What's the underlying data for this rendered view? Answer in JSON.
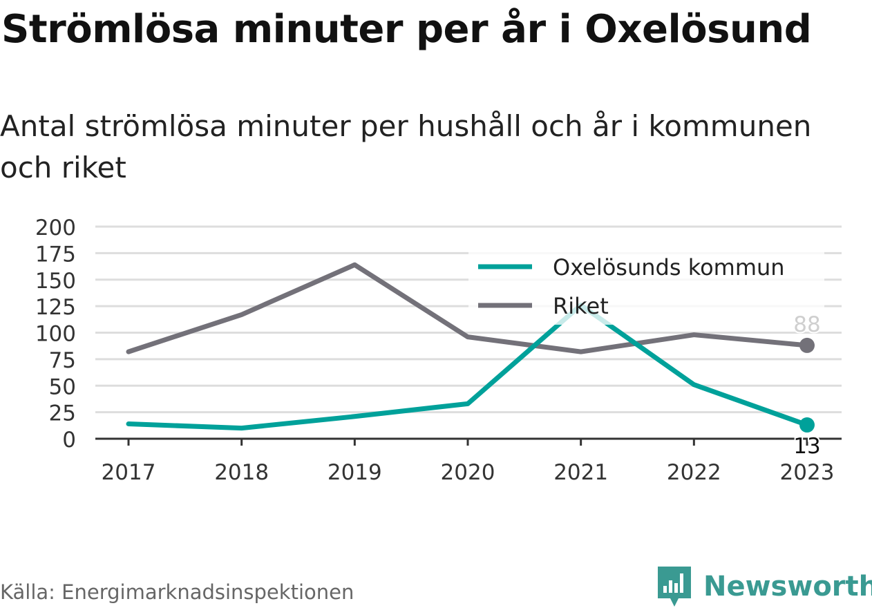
{
  "title": "Strömlösa minuter per år i Oxelösund",
  "subtitle": "Antal strömlösa minuter per hushåll och år i kommunen och riket",
  "source": "Källa: Energimarknadsinspektionen",
  "brand": {
    "name": "Newsworthy",
    "icon": "newsworthy-logo-icon",
    "color": "#3a9a92"
  },
  "chart_data": {
    "type": "line",
    "title": "Strömlösa minuter per år i Oxelösund",
    "subtitle": "Antal strömlösa minuter per hushåll och år i kommunen och riket",
    "x": [
      "2017",
      "2018",
      "2019",
      "2020",
      "2021",
      "2022",
      "2023"
    ],
    "ylim": [
      0,
      200
    ],
    "yticks": [
      0,
      25,
      50,
      75,
      100,
      125,
      150,
      175,
      200
    ],
    "grid": true,
    "legend_position": "top-right",
    "series": [
      {
        "name": "Oxelösunds kommun",
        "color": "#00a19a",
        "values": [
          14,
          10,
          21,
          33,
          126,
          51,
          13
        ],
        "end_label": "13"
      },
      {
        "name": "Riket",
        "color": "#737179",
        "values": [
          82,
          117,
          164,
          96,
          82,
          98,
          88
        ],
        "end_label": "88"
      }
    ]
  }
}
